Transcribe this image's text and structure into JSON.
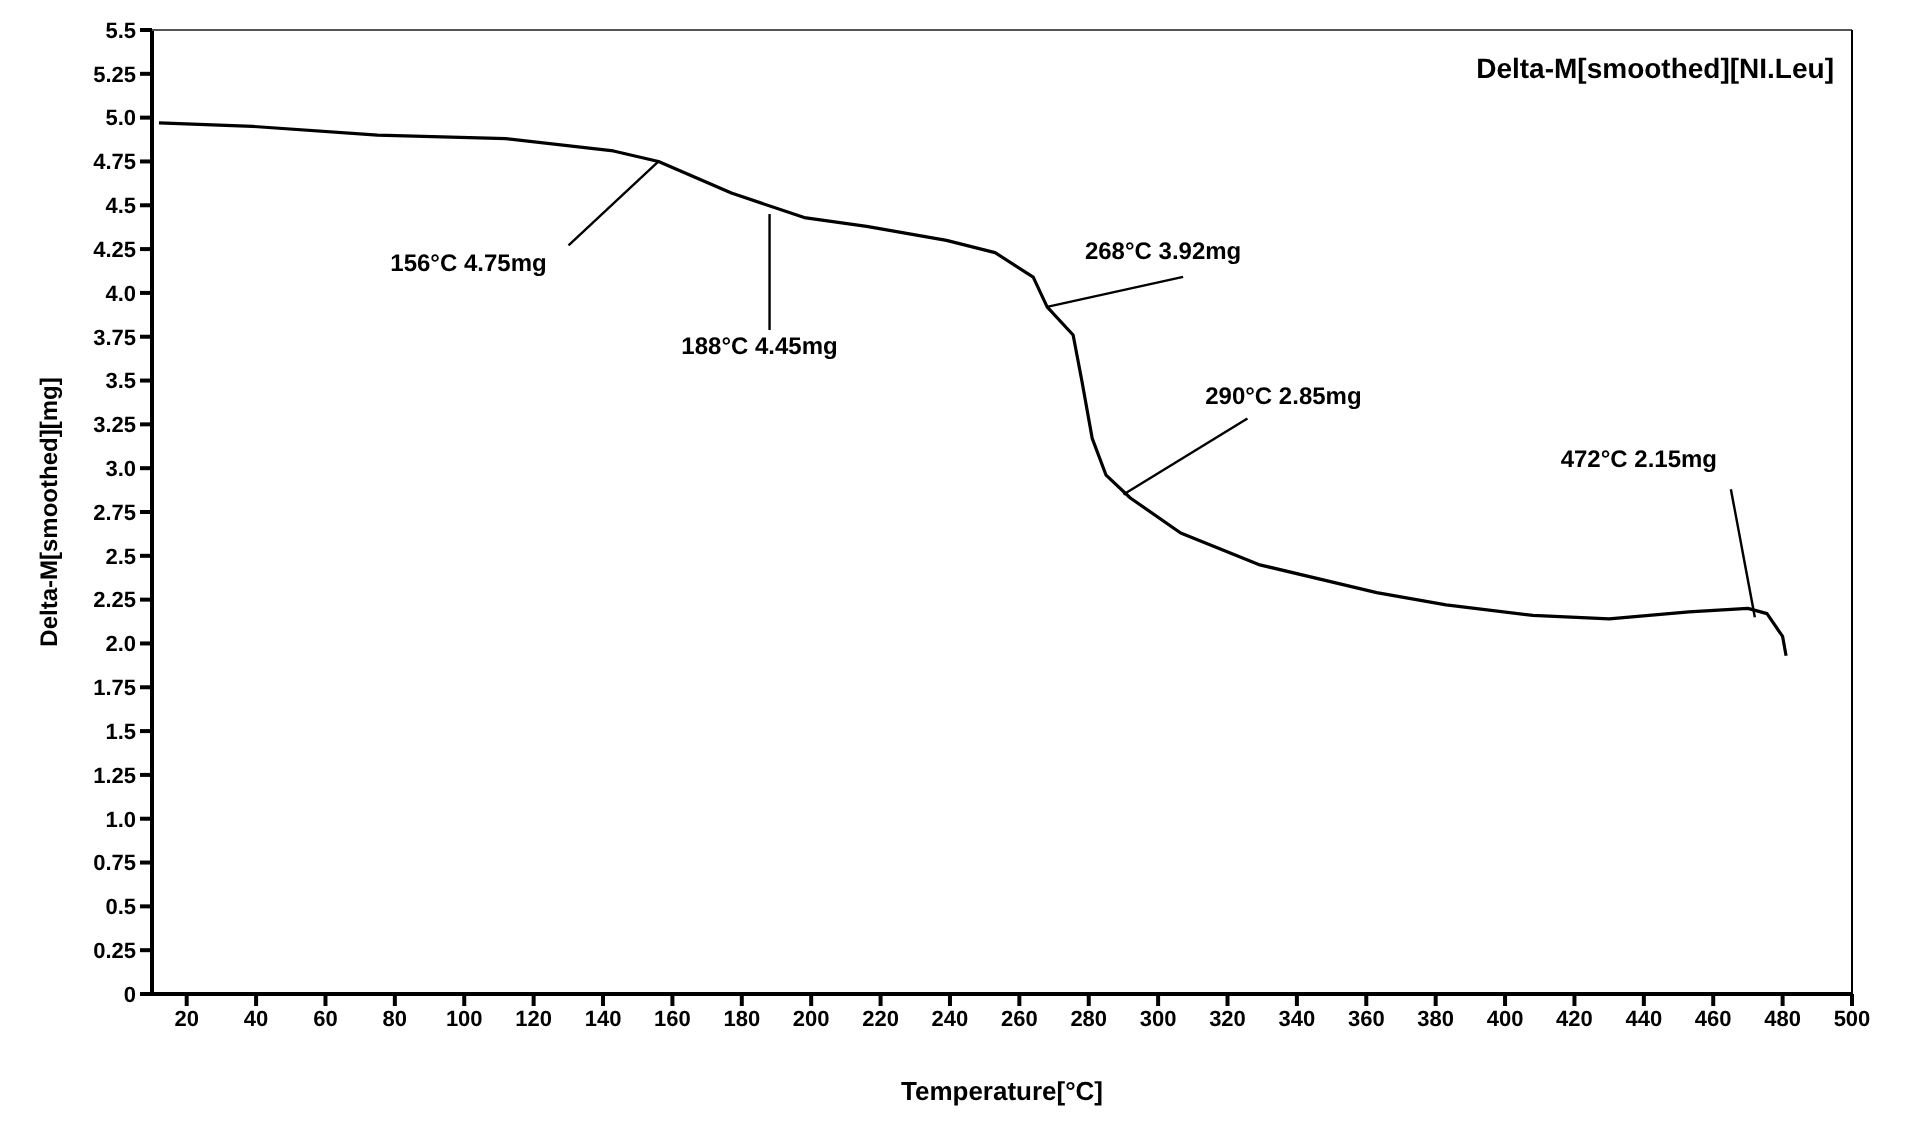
{
  "chart_data": {
    "type": "line",
    "xlabel": "Temperature[°C]",
    "ylabel": "Delta-M[smoothed][mg]",
    "xlim": [
      10,
      500
    ],
    "xticks": [
      20,
      40,
      60,
      80,
      100,
      120,
      140,
      160,
      180,
      200,
      220,
      240,
      260,
      280,
      300,
      320,
      340,
      360,
      380,
      400,
      420,
      440,
      460,
      480,
      500
    ],
    "ylim": [
      0,
      5.5
    ],
    "yticks": [
      0,
      0.25,
      0.5,
      0.75,
      {
        "value": 1,
        "label": "1.0"
      },
      1.25,
      1.5,
      1.75,
      {
        "value": 2,
        "label": "2.0"
      },
      2.25,
      2.5,
      2.75,
      {
        "value": 3,
        "label": "3.0"
      },
      3.25,
      3.5,
      3.75,
      {
        "value": 4,
        "label": "4.0"
      },
      4.25,
      4.5,
      4.75,
      {
        "value": 5,
        "label": "5.0"
      },
      5.25,
      5.5
    ],
    "legend": "top right",
    "series": [
      {
        "name": "Delta-M[smoothed][NI.Leu]",
        "color": "#000000",
        "x": [
          12,
          39,
          75,
          112,
          143,
          156,
          177,
          198,
          216,
          239,
          253,
          264,
          268,
          275.5,
          278,
          281,
          285,
          292,
          306.5,
          329,
          363,
          383,
          408,
          430,
          453,
          470,
          475.5,
          480,
          481
        ],
        "values": [
          4.97,
          4.95,
          4.9,
          4.88,
          4.81,
          4.75,
          4.57,
          4.43,
          4.38,
          4.3,
          4.23,
          4.09,
          3.92,
          3.76,
          3.5,
          3.17,
          2.96,
          2.83,
          2.63,
          2.45,
          2.29,
          2.22,
          2.16,
          2.14,
          2.18,
          2.2,
          2.17,
          2.04,
          1.93
        ]
      }
    ],
    "annotations": [
      {
        "text": "156°C  4.75mg",
        "x": 156,
        "y": 4.75
      },
      {
        "text": "188°C  4.45mg",
        "x": 188,
        "y": 4.45
      },
      {
        "text": "268°C  3.92mg",
        "x": 268,
        "y": 3.92
      },
      {
        "text": "290°C  2.85mg",
        "x": 290,
        "y": 2.85
      },
      {
        "text": "472°C  2.15mg",
        "x": 472,
        "y": 2.15
      }
    ]
  }
}
